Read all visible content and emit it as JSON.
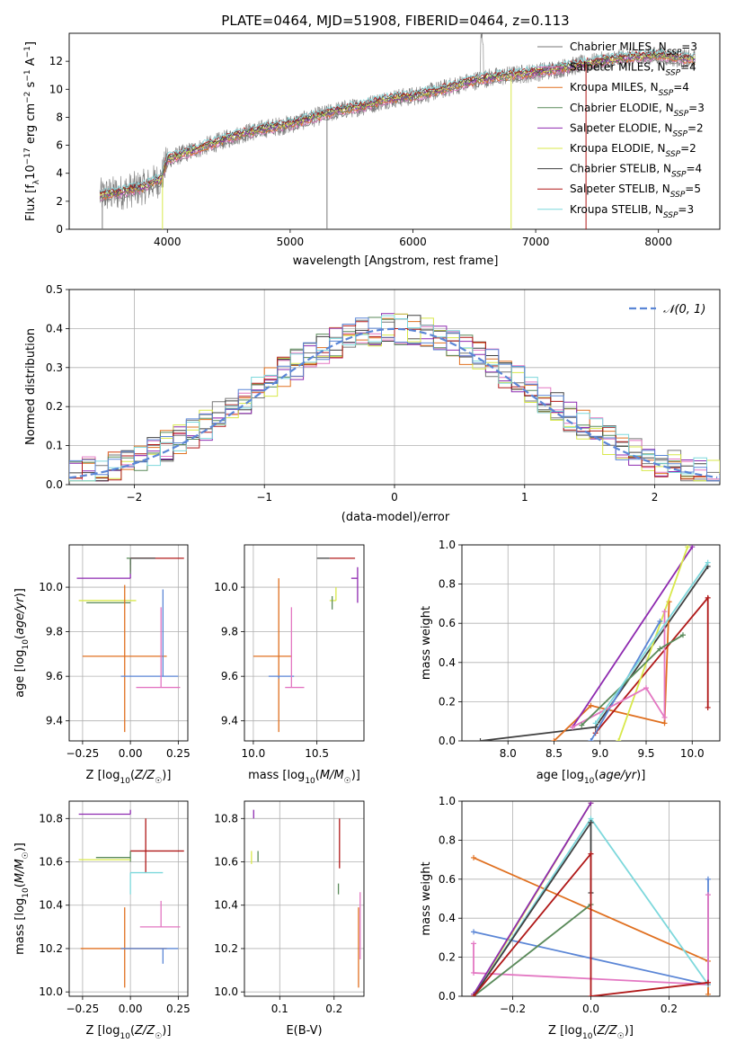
{
  "figure": {
    "title": "PLATE=0464, MJD=51908, FIBERID=0464, z=0.113"
  },
  "palette": {
    "Chabrier MILES": "#777777",
    "Salpeter MILES": "#e377c2",
    "Kroupa MILES": "#e07020",
    "Chabrier ELODIE": "#5a8a5a",
    "Salpeter ELODIE": "#8e2ab0",
    "Kroupa ELODIE": "#d8e84a",
    "Chabrier STELIB": "#404040",
    "Salpeter STELIB": "#b01818",
    "Kroupa STELIB": "#7dd8dc",
    "extra_blue": "#5b86d6",
    "gaussian": "#5b86d6"
  },
  "chart_data": [
    {
      "type": "line",
      "id": "spectrum",
      "title": "PLATE=0464, MJD=51908, FIBERID=0464, z=0.113",
      "xlabel": "wavelength [Angstrom, rest frame]",
      "ylabel": "Flux [f_λ10^-17 erg cm^-2 s^-1 A^-1]",
      "xlim": [
        3200,
        8500
      ],
      "ylim": [
        0,
        14
      ],
      "xticks": [
        4000,
        5000,
        6000,
        7000,
        8000
      ],
      "yticks": [
        0,
        2,
        4,
        6,
        8,
        10,
        12
      ],
      "data_x": [
        3450,
        3600,
        3800,
        3950,
        4000,
        4200,
        4400,
        4600,
        4800,
        5000,
        5200,
        5400,
        5600,
        5800,
        6000,
        6200,
        6400,
        6600,
        6800,
        7000,
        7200,
        7400,
        7600,
        7800,
        8000,
        8200,
        8300
      ],
      "data_y": [
        2.4,
        2.6,
        3.0,
        3.6,
        5.0,
        5.6,
        6.2,
        6.8,
        7.2,
        7.5,
        8.0,
        8.5,
        8.8,
        9.3,
        9.5,
        9.9,
        10.4,
        10.8,
        11.0,
        11.2,
        11.5,
        11.8,
        12.1,
        12.3,
        12.4,
        12.2,
        12.1
      ],
      "series": [
        {
          "name": "Chabrier MILES, N_SSP=3",
          "color": "#777777"
        },
        {
          "name": "Salpeter MILES, N_SSP=4",
          "color": "#e377c2"
        },
        {
          "name": "Kroupa MILES, N_SSP=4",
          "color": "#e07020"
        },
        {
          "name": "Chabrier ELODIE, N_SSP=3",
          "color": "#5a8a5a"
        },
        {
          "name": "Salpeter ELODIE, N_SSP=2",
          "color": "#8e2ab0"
        },
        {
          "name": "Kroupa ELODIE, N_SSP=2",
          "color": "#d8e84a"
        },
        {
          "name": "Chabrier STELIB, N_SSP=4",
          "color": "#404040"
        },
        {
          "name": "Salpeter STELIB, N_SSP=5",
          "color": "#b01818"
        },
        {
          "name": "Kroupa STELIB, N_SSP=3",
          "color": "#7dd8dc"
        }
      ],
      "legend": "upper right"
    },
    {
      "type": "line",
      "id": "residuals",
      "xlabel": "(data-model)/error",
      "ylabel": "Normed distribution",
      "xlim": [
        -2.5,
        2.5
      ],
      "ylim": [
        0,
        0.5
      ],
      "xticks": [
        -2,
        -1,
        0,
        1,
        2
      ],
      "xtick_labels": [
        "−2",
        "−1",
        "0",
        "1",
        "2"
      ],
      "yticks": [
        0.0,
        0.1,
        0.2,
        0.3,
        0.4,
        0.5
      ],
      "ytick_labels": [
        "0.0",
        "0.1",
        "0.2",
        "0.3",
        "0.4",
        "0.5"
      ],
      "grid": true,
      "legend_label": "𝒩(0, 1)",
      "legend": "upper right"
    },
    {
      "type": "scatter",
      "id": "age-vs-Z",
      "xlabel": "Z [log10(Z/Z☉)]",
      "ylabel": "age  [log10(age/yr)]",
      "xlim": [
        -0.32,
        0.3
      ],
      "ylim": [
        9.31,
        10.19
      ],
      "xticks": [
        -0.25,
        0.0,
        0.25
      ],
      "xtick_labels": [
        "−0.25",
        "0.00",
        "0.25"
      ],
      "yticks": [
        9.4,
        9.6,
        9.8,
        10.0
      ],
      "ytick_labels": [
        "9.4",
        "9.6",
        "9.8",
        "10.0"
      ],
      "grid": true,
      "points": [
        {
          "x": 0.0,
          "y": 10.13,
          "xerr": [
            0.0,
            0.28
          ],
          "yerr": [
            0.06,
            0.0
          ],
          "color": "#b01818"
        },
        {
          "x": 0.0,
          "y": 10.13,
          "xerr": [
            0.0,
            0.13
          ],
          "yerr": [
            0.03,
            0.0
          ],
          "color": "#404040"
        },
        {
          "x": 0.0,
          "y": 10.04,
          "xerr": [
            0.28,
            0.0
          ],
          "yerr": [
            0.0,
            0.09
          ],
          "color": "#8e2ab0"
        },
        {
          "x": 0.0,
          "y": 10.13,
          "xerr": [
            0.02,
            0.0
          ],
          "yerr": [
            0.07,
            0.0
          ],
          "color": "#5a8a5a"
        },
        {
          "x": 0.0,
          "y": 9.94,
          "xerr": [
            0.27,
            0.03
          ],
          "yerr": [
            0.0,
            0.0
          ],
          "color": "#d8e84a"
        },
        {
          "x": 0.0,
          "y": 9.93,
          "xerr": [
            0.23,
            0.0
          ],
          "yerr": [
            0.0,
            0.0
          ],
          "color": "#5a8a5a"
        },
        {
          "x": -0.03,
          "y": 9.69,
          "xerr": [
            0.22,
            0.22
          ],
          "yerr": [
            0.34,
            0.32
          ],
          "color": "#e07020"
        },
        {
          "x": 0.17,
          "y": 9.6,
          "xerr": [
            0.22,
            0.08
          ],
          "yerr": [
            0.0,
            0.39
          ],
          "color": "#5b86d6"
        },
        {
          "x": 0.16,
          "y": 9.55,
          "xerr": [
            0.13,
            0.1
          ],
          "yerr": [
            0.0,
            0.36
          ],
          "color": "#e377c2"
        }
      ]
    },
    {
      "type": "scatter",
      "id": "age-vs-mass",
      "xlabel": "mass [log10(M/M☉)]",
      "ylabel": "",
      "xlim": [
        9.93,
        10.87
      ],
      "ylim": [
        9.31,
        10.19
      ],
      "xticks": [
        10.0,
        10.5
      ],
      "xtick_labels": [
        "10.0",
        "10.5"
      ],
      "yticks": [
        9.4,
        9.6,
        9.8,
        10.0
      ],
      "ytick_labels": [
        "9.4",
        "9.6",
        "9.8",
        "10.0"
      ],
      "grid": true,
      "points": [
        {
          "x": 10.6,
          "y": 10.13,
          "xerr": [
            0.0,
            0.2
          ],
          "yerr": [
            0.0,
            0.0
          ],
          "color": "#b01818"
        },
        {
          "x": 10.55,
          "y": 10.13,
          "xerr": [
            0.05,
            0.05
          ],
          "yerr": [
            0.0,
            0.0
          ],
          "color": "#404040"
        },
        {
          "x": 10.82,
          "y": 10.04,
          "xerr": [
            0.05,
            0.0
          ],
          "yerr": [
            0.11,
            0.05
          ],
          "color": "#8e2ab0"
        },
        {
          "x": 10.65,
          "y": 9.94,
          "xerr": [
            0.05,
            0.0
          ],
          "yerr": [
            0.0,
            0.06
          ],
          "color": "#d8e84a"
        },
        {
          "x": 10.62,
          "y": 9.93,
          "xerr": [
            0.0,
            0.0
          ],
          "yerr": [
            0.03,
            0.03
          ],
          "color": "#5a8a5a"
        },
        {
          "x": 10.2,
          "y": 9.69,
          "xerr": [
            0.2,
            0.1
          ],
          "yerr": [
            0.34,
            0.35
          ],
          "color": "#e07020"
        },
        {
          "x": 10.2,
          "y": 9.6,
          "xerr": [
            0.08,
            0.12
          ],
          "yerr": [
            0.01,
            0.0
          ],
          "color": "#5b86d6"
        },
        {
          "x": 10.3,
          "y": 9.55,
          "xerr": [
            0.05,
            0.1
          ],
          "yerr": [
            0.0,
            0.36
          ],
          "color": "#e377c2"
        }
      ]
    },
    {
      "type": "line",
      "id": "massweight-vs-age",
      "xlabel": "age  [log10(age/yr)]",
      "ylabel": "mass weight",
      "xlim": [
        7.5,
        10.3
      ],
      "ylim": [
        0,
        1.0
      ],
      "xticks": [
        8.0,
        8.5,
        9.0,
        9.5,
        10.0
      ],
      "xtick_labels": [
        "8.0",
        "8.5",
        "9.0",
        "9.5",
        "10.0"
      ],
      "yticks": [
        0.0,
        0.2,
        0.4,
        0.6,
        0.8,
        1.0
      ],
      "ytick_labels": [
        "0.0",
        "0.2",
        "0.4",
        "0.6",
        "0.8",
        "1.0"
      ],
      "grid": true,
      "series": [
        {
          "color": "#404040",
          "x": [
            7.7,
            8.95,
            10.17
          ],
          "y": [
            0.0,
            0.07,
            0.89
          ]
        },
        {
          "color": "#e07020",
          "x": [
            8.5,
            8.9,
            9.7,
            9.75
          ],
          "y": [
            0.0,
            0.18,
            0.09,
            0.71
          ]
        },
        {
          "color": "#b01818",
          "x": [
            8.95,
            10.17,
            10.17
          ],
          "y": [
            0.04,
            0.73,
            0.17
          ]
        },
        {
          "color": "#8e2ab0",
          "x": [
            8.7,
            10.0
          ],
          "y": [
            0.07,
            0.99
          ]
        },
        {
          "color": "#d8e84a",
          "x": [
            9.2,
            9.95
          ],
          "y": [
            0.0,
            0.99
          ]
        },
        {
          "color": "#5b86d6",
          "x": [
            8.9,
            9.65
          ],
          "y": [
            0.0,
            0.61
          ]
        },
        {
          "color": "#e377c2",
          "x": [
            8.7,
            9.5,
            9.7,
            9.7
          ],
          "y": [
            0.07,
            0.27,
            0.12,
            0.66
          ]
        },
        {
          "color": "#5a8a5a",
          "x": [
            8.8,
            9.65,
            9.9
          ],
          "y": [
            0.08,
            0.47,
            0.54
          ]
        },
        {
          "color": "#7dd8dc",
          "x": [
            8.95,
            10.17
          ],
          "y": [
            0.09,
            0.91
          ]
        }
      ]
    },
    {
      "type": "scatter",
      "id": "mass-vs-Z",
      "xlabel": "Z [log10(Z/Z☉)]",
      "ylabel": "mass [log10(M/M☉)]",
      "xlim": [
        -0.32,
        0.3
      ],
      "ylim": [
        9.98,
        10.88
      ],
      "xticks": [
        -0.25,
        0.0,
        0.25
      ],
      "xtick_labels": [
        "−0.25",
        "0.00",
        "0.25"
      ],
      "yticks": [
        10.0,
        10.2,
        10.4,
        10.6,
        10.8
      ],
      "ytick_labels": [
        "10.0",
        "10.2",
        "10.4",
        "10.6",
        "10.8"
      ],
      "grid": true,
      "points": [
        {
          "x": 0.0,
          "y": 10.82,
          "xerr": [
            0.27,
            0.0
          ],
          "yerr": [
            0.0,
            0.02
          ],
          "color": "#8e2ab0"
        },
        {
          "x": 0.0,
          "y": 10.65,
          "xerr": [
            0.0,
            0.28
          ],
          "yerr": [
            0.0,
            0.0
          ],
          "color": "#b01818"
        },
        {
          "x": 0.08,
          "y": 10.65,
          "xerr": [
            0.0,
            0.0
          ],
          "yerr": [
            0.1,
            0.15
          ],
          "color": "#b01818"
        },
        {
          "x": 0.0,
          "y": 10.62,
          "xerr": [
            0.18,
            0.0
          ],
          "yerr": [
            0.02,
            0.03
          ],
          "color": "#5a8a5a"
        },
        {
          "x": 0.0,
          "y": 10.61,
          "xerr": [
            0.27,
            0.0
          ],
          "yerr": [
            0.0,
            0.0
          ],
          "color": "#d8e84a"
        },
        {
          "x": 0.0,
          "y": 10.55,
          "xerr": [
            0.0,
            0.17
          ],
          "yerr": [
            0.1,
            0.0
          ],
          "color": "#7dd8dc"
        },
        {
          "x": -0.03,
          "y": 10.2,
          "xerr": [
            0.23,
            0.22
          ],
          "yerr": [
            0.18,
            0.19
          ],
          "color": "#e07020"
        },
        {
          "x": 0.17,
          "y": 10.2,
          "xerr": [
            0.22,
            0.08
          ],
          "yerr": [
            0.07,
            0.0
          ],
          "color": "#5b86d6"
        },
        {
          "x": 0.16,
          "y": 10.3,
          "xerr": [
            0.11,
            0.1
          ],
          "yerr": [
            0.0,
            0.12
          ],
          "color": "#e377c2"
        }
      ]
    },
    {
      "type": "scatter",
      "id": "mass-vs-EBV",
      "xlabel": "E(B-V)",
      "ylabel": "",
      "xlim": [
        0.035,
        0.255
      ],
      "ylim": [
        9.98,
        10.88
      ],
      "xticks": [
        0.1,
        0.2
      ],
      "xtick_labels": [
        "0.1",
        "0.2"
      ],
      "yticks": [
        10.0,
        10.2,
        10.4,
        10.6,
        10.8
      ],
      "ytick_labels": [
        "10.0",
        "10.2",
        "10.4",
        "10.6",
        "10.8"
      ],
      "grid": true,
      "points": [
        {
          "x": 0.052,
          "y": 10.82,
          "yerr": [
            0.02,
            0.02
          ],
          "color": "#8e2ab0"
        },
        {
          "x": 0.048,
          "y": 10.61,
          "yerr": [
            0.02,
            0.04
          ],
          "color": "#d8e84a"
        },
        {
          "x": 0.06,
          "y": 10.62,
          "yerr": [
            0.02,
            0.03
          ],
          "color": "#5a8a5a"
        },
        {
          "x": 0.21,
          "y": 10.65,
          "yerr": [
            0.08,
            0.15
          ],
          "color": "#b01818"
        },
        {
          "x": 0.208,
          "y": 10.5,
          "yerr": [
            0.05,
            0.0
          ],
          "color": "#5a8a5a"
        },
        {
          "x": 0.245,
          "y": 10.2,
          "yerr": [
            0.18,
            0.19
          ],
          "color": "#e07020"
        },
        {
          "x": 0.248,
          "y": 10.3,
          "yerr": [
            0.15,
            0.16
          ],
          "color": "#e377c2"
        }
      ]
    },
    {
      "type": "line",
      "id": "massweight-vs-Z",
      "xlabel": "Z [log10(Z/Z☉)]",
      "ylabel": "mass weight",
      "xlim": [
        -0.33,
        0.33
      ],
      "ylim": [
        0,
        1.0
      ],
      "xticks": [
        -0.2,
        0.0,
        0.2
      ],
      "xtick_labels": [
        "−0.2",
        "0.0",
        "0.2"
      ],
      "yticks": [
        0.0,
        0.2,
        0.4,
        0.6,
        0.8,
        1.0
      ],
      "ytick_labels": [
        "0.0",
        "0.2",
        "0.4",
        "0.6",
        "0.8",
        "1.0"
      ],
      "grid": true,
      "series": [
        {
          "color": "#e07020",
          "x": [
            -0.3,
            0.3,
            0.3
          ],
          "y": [
            0.71,
            0.18,
            0.01
          ]
        },
        {
          "color": "#5b86d6",
          "x": [
            -0.3,
            0.3,
            0.3
          ],
          "y": [
            0.33,
            0.06,
            0.6
          ]
        },
        {
          "color": "#e377c2",
          "x": [
            -0.3,
            -0.3,
            0.0,
            0.3,
            0.3
          ],
          "y": [
            0.27,
            0.12,
            0.09,
            0.06,
            0.52
          ]
        },
        {
          "color": "#d8e84a",
          "x": [
            -0.3,
            0.0
          ],
          "y": [
            0.0,
            0.99
          ]
        },
        {
          "color": "#8e2ab0",
          "x": [
            -0.3,
            0.0
          ],
          "y": [
            0.01,
            0.99
          ]
        },
        {
          "color": "#7dd8dc",
          "x": [
            -0.3,
            0.0,
            0.3
          ],
          "y": [
            0.0,
            0.91,
            0.06
          ]
        },
        {
          "color": "#404040",
          "x": [
            -0.3,
            0.0,
            0.0
          ],
          "y": [
            0.0,
            0.89,
            0.53
          ]
        },
        {
          "color": "#5a8a5a",
          "x": [
            -0.3,
            0.0
          ],
          "y": [
            0.0,
            0.47
          ]
        },
        {
          "color": "#b01818",
          "x": [
            -0.3,
            0.0,
            0.0,
            0.3,
            0.3
          ],
          "y": [
            0.0,
            0.73,
            0.0,
            0.07,
            0.07
          ]
        }
      ]
    }
  ]
}
